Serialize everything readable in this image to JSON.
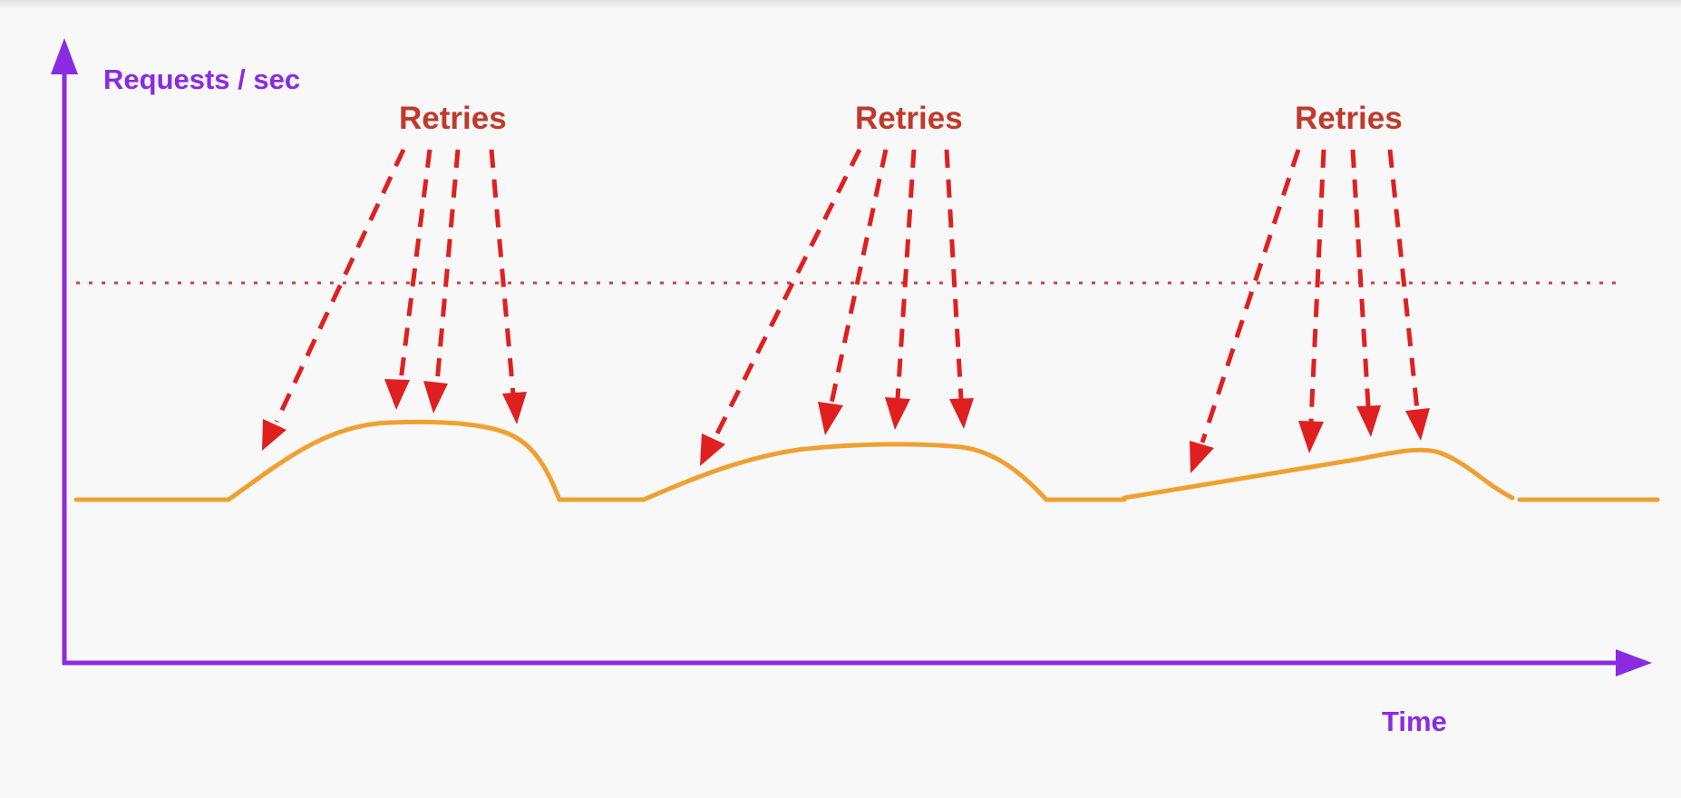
{
  "diagram": {
    "y_axis_label": "Requests / sec",
    "x_axis_label": "Time",
    "annotations": [
      "Retries",
      "Retries",
      "Retries"
    ],
    "colors": {
      "axis": "#8a2be2",
      "axis_label": "#8a2be2",
      "annotation": "#c0392b",
      "retry_arrow": "#e02020",
      "threshold": "#d04040",
      "load_curve": "#f0a030",
      "background": "#f8f8f8"
    }
  }
}
